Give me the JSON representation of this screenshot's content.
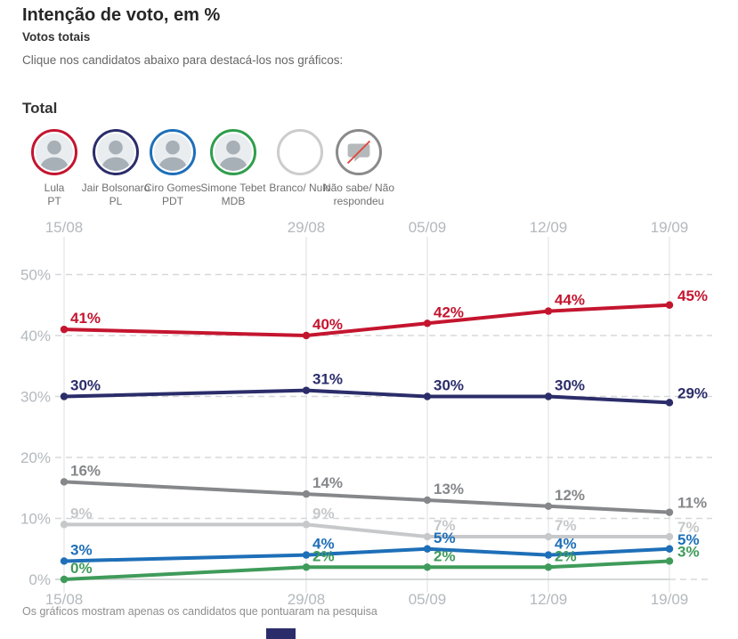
{
  "header": {
    "title": "Intenção de voto, em %",
    "subtitle": "Votos totais",
    "instruction": "Clique nos candidatos abaixo para destacá-los nos gráficos:"
  },
  "section_title": "Total",
  "legend": {
    "candidates": [
      {
        "key": "lula",
        "line1": "Lula",
        "line2": "PT",
        "ring_color": "#c4152f",
        "icon": "person-photo"
      },
      {
        "key": "jair-bolsonaro",
        "line1": "Jair Bolsonaro",
        "line2": "PL",
        "ring_color": "#2b2d6a",
        "icon": "person-photo"
      },
      {
        "key": "ciro-gomes",
        "line1": "Ciro Gomes",
        "line2": "PDT",
        "ring_color": "#1e6fb8",
        "icon": "person-photo"
      },
      {
        "key": "simone-tebet",
        "line1": "Simone Tebet",
        "line2": "MDB",
        "ring_color": "#2f9e4c",
        "icon": "person-photo"
      },
      {
        "key": "branco-nulo",
        "line1": "Branco/ Nulo",
        "line2": "",
        "ring_color": "#cccccc",
        "icon": "empty-circle"
      },
      {
        "key": "nao-sabe",
        "line1": "Não sabe/ Não",
        "line2": "respondeu",
        "ring_color": "#8a8a8a",
        "icon": "no-answer-bubble"
      }
    ]
  },
  "chart_data": {
    "type": "line",
    "x": [
      "15/08",
      "29/08",
      "05/09",
      "12/09",
      "19/09"
    ],
    "x_days_offset": [
      0,
      14,
      21,
      28,
      35
    ],
    "yticks": [
      "0%",
      "10%",
      "20%",
      "30%",
      "40%",
      "50%"
    ],
    "ylim": [
      0,
      50
    ],
    "grid": "horizontal dashed at each 10%, vertical solid line at each date, axis labels on top and bottom",
    "series": [
      {
        "name": "Lula (PT)",
        "color": "#c4152f",
        "values": [
          41,
          40,
          42,
          44,
          45
        ]
      },
      {
        "name": "Jair Bolsonaro (PL)",
        "color": "#2b2d6a",
        "values": [
          30,
          31,
          30,
          30,
          29
        ]
      },
      {
        "name": "Não sabe/Não respondeu",
        "color": "#85878a",
        "values": [
          16,
          14,
          13,
          12,
          11
        ]
      },
      {
        "name": "Branco/Nulo",
        "color": "#c6c8ca",
        "values": [
          9,
          9,
          7,
          7,
          7
        ]
      },
      {
        "name": "Ciro Gomes (PDT)",
        "color": "#1e6fb8",
        "values": [
          3,
          4,
          5,
          4,
          5
        ]
      },
      {
        "name": "Simone Tebet (MDB)",
        "color": "#3f9b5a",
        "values": [
          0,
          2,
          2,
          2,
          3
        ]
      }
    ],
    "point_label_format": "{value}%"
  },
  "footer": {
    "note": "Os gráficos mostram apenas os candidatos que pontuaram na pesquisa"
  },
  "colors": {
    "axis_text": "#b3b9bd",
    "grid_dash": "#d7d8d9",
    "grid_vertical": "#e3e4e5",
    "axis_baseline": "#c7c8c9"
  }
}
